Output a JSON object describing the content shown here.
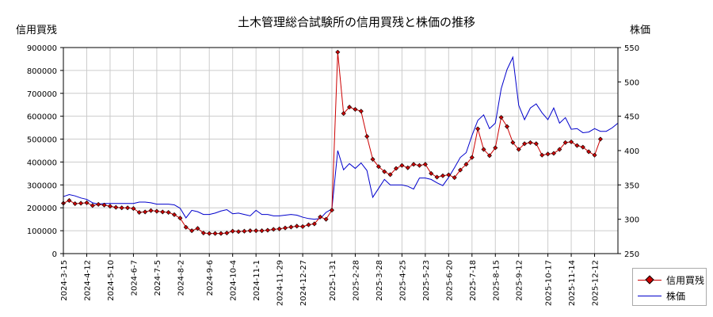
{
  "chart_data": {
    "type": "line",
    "title": "土木管理総合試験所の信用買残と株価の推移",
    "ylabel_left": "信用買残",
    "ylabel_right": "株価",
    "ylim_left": [
      0,
      900000
    ],
    "ylim_right": [
      250,
      550
    ],
    "yticks_left": [
      "0",
      "100000",
      "200000",
      "300000",
      "400000",
      "500000",
      "600000",
      "700000",
      "800000",
      "900000"
    ],
    "yticks_right": [
      "250",
      "300",
      "350",
      "400",
      "450",
      "500",
      "550"
    ],
    "xlim": [
      "2024-03-15",
      "2026-01-09"
    ],
    "xticks": [
      "2024-3-15",
      "2024-4-12",
      "2024-5-10",
      "2024-6-7",
      "2024-7-5",
      "2024-8-2",
      "2024-9-6",
      "2024-10-4",
      "2024-11-1",
      "2024-11-29",
      "2024-12-27",
      "2025-1-31",
      "2025-2-28",
      "2025-3-28",
      "2025-4-25",
      "2025-5-23",
      "2025-6-20",
      "2025-7-18",
      "2025-8-15",
      "2025-9-12",
      "2025-10-17",
      "2025-11-14",
      "2025-12-12"
    ],
    "grid": true,
    "legend_position": "bottom-right, outside plot",
    "colors": {
      "margin": "#cc0000",
      "price": "#0000cc"
    },
    "series": [
      {
        "name": "信用買残",
        "axis": "left",
        "x": [
          "2024-3-15",
          "2024-3-22",
          "2024-3-29",
          "2024-4-5",
          "2024-4-12",
          "2024-4-19",
          "2024-4-26",
          "2024-5-3",
          "2024-5-10",
          "2024-5-17",
          "2024-5-24",
          "2024-5-31",
          "2024-6-7",
          "2024-6-14",
          "2024-6-21",
          "2024-6-28",
          "2024-7-5",
          "2024-7-12",
          "2024-7-19",
          "2024-7-26",
          "2024-8-2",
          "2024-8-9",
          "2024-8-16",
          "2024-8-23",
          "2024-8-30",
          "2024-9-6",
          "2024-9-13",
          "2024-9-20",
          "2024-9-27",
          "2024-10-4",
          "2024-10-11",
          "2024-10-18",
          "2024-10-25",
          "2024-11-1",
          "2024-11-8",
          "2024-11-15",
          "2024-11-22",
          "2024-11-29",
          "2024-12-6",
          "2024-12-13",
          "2024-12-20",
          "2024-12-27",
          "2025-1-3",
          "2025-1-10",
          "2025-1-17",
          "2025-1-24",
          "2025-1-31",
          "2025-2-7",
          "2025-2-14",
          "2025-2-21",
          "2025-2-28",
          "2025-3-7",
          "2025-3-14",
          "2025-3-21",
          "2025-3-28",
          "2025-4-4",
          "2025-4-11",
          "2025-4-18",
          "2025-4-25",
          "2025-5-2",
          "2025-5-9",
          "2025-5-16",
          "2025-5-23",
          "2025-5-30",
          "2025-6-6",
          "2025-6-13",
          "2025-6-20",
          "2025-6-27",
          "2025-7-4",
          "2025-7-11",
          "2025-7-18",
          "2025-7-25",
          "2025-8-1",
          "2025-8-8",
          "2025-8-15",
          "2025-8-22",
          "2025-8-29",
          "2025-9-5",
          "2025-9-12",
          "2025-9-19",
          "2025-9-26",
          "2025-10-3",
          "2025-10-10",
          "2025-10-17",
          "2025-10-24",
          "2025-10-31",
          "2025-11-7",
          "2025-11-14",
          "2025-11-21",
          "2025-11-28",
          "2025-12-5",
          "2025-12-12",
          "2025-12-19",
          "2025-12-26",
          "2026-1-2",
          "2026-1-9"
        ],
        "values": [
          220000,
          232000,
          218000,
          220000,
          222000,
          210000,
          215000,
          212000,
          207000,
          202000,
          200000,
          200000,
          197000,
          180000,
          182000,
          188000,
          185000,
          182000,
          180000,
          170000,
          155000,
          115000,
          100000,
          110000,
          90000,
          88000,
          88000,
          88000,
          90000,
          98000,
          96000,
          98000,
          100000,
          100000,
          100000,
          102000,
          106000,
          108000,
          112000,
          116000,
          120000,
          118000,
          126000,
          130000,
          160000,
          150000,
          190000,
          880000,
          612000,
          640000,
          630000,
          622000,
          512000,
          412000,
          380000,
          358000,
          345000,
          372000,
          385000,
          375000,
          390000,
          385000,
          390000,
          350000,
          334000,
          340000,
          344000,
          332000,
          365000,
          390000,
          420000,
          545000,
          455000,
          428000,
          462000,
          595000,
          555000,
          485000,
          455000,
          480000,
          485000,
          480000,
          430000,
          435000,
          438000,
          455000,
          485000,
          488000,
          472000,
          465000,
          445000,
          430000,
          500000,
          0,
          0,
          0
        ],
        "note": "last three entries unused"
      },
      {
        "name": "株価",
        "axis": "right",
        "values": [
          333,
          336,
          334,
          331,
          329,
          324,
          322,
          323,
          323,
          323,
          323,
          323,
          323,
          325,
          325,
          324,
          322,
          322,
          322,
          321,
          316,
          302,
          313,
          311,
          307,
          307,
          309,
          312,
          314,
          308,
          309,
          307,
          305,
          313,
          307,
          307,
          305,
          305,
          306,
          307,
          306,
          303,
          301,
          300,
          301,
          310,
          315,
          400,
          372,
          381,
          374,
          382,
          371,
          332,
          345,
          358,
          350,
          350,
          350,
          348,
          344,
          360,
          360,
          358,
          353,
          349,
          361,
          375,
          390,
          397,
          422,
          444,
          452,
          432,
          440,
          490,
          518,
          536,
          466,
          445,
          462,
          468,
          455,
          445,
          462,
          440,
          448,
          431,
          432,
          426,
          427,
          432,
          428,
          428,
          433,
          440
        ]
      }
    ]
  }
}
